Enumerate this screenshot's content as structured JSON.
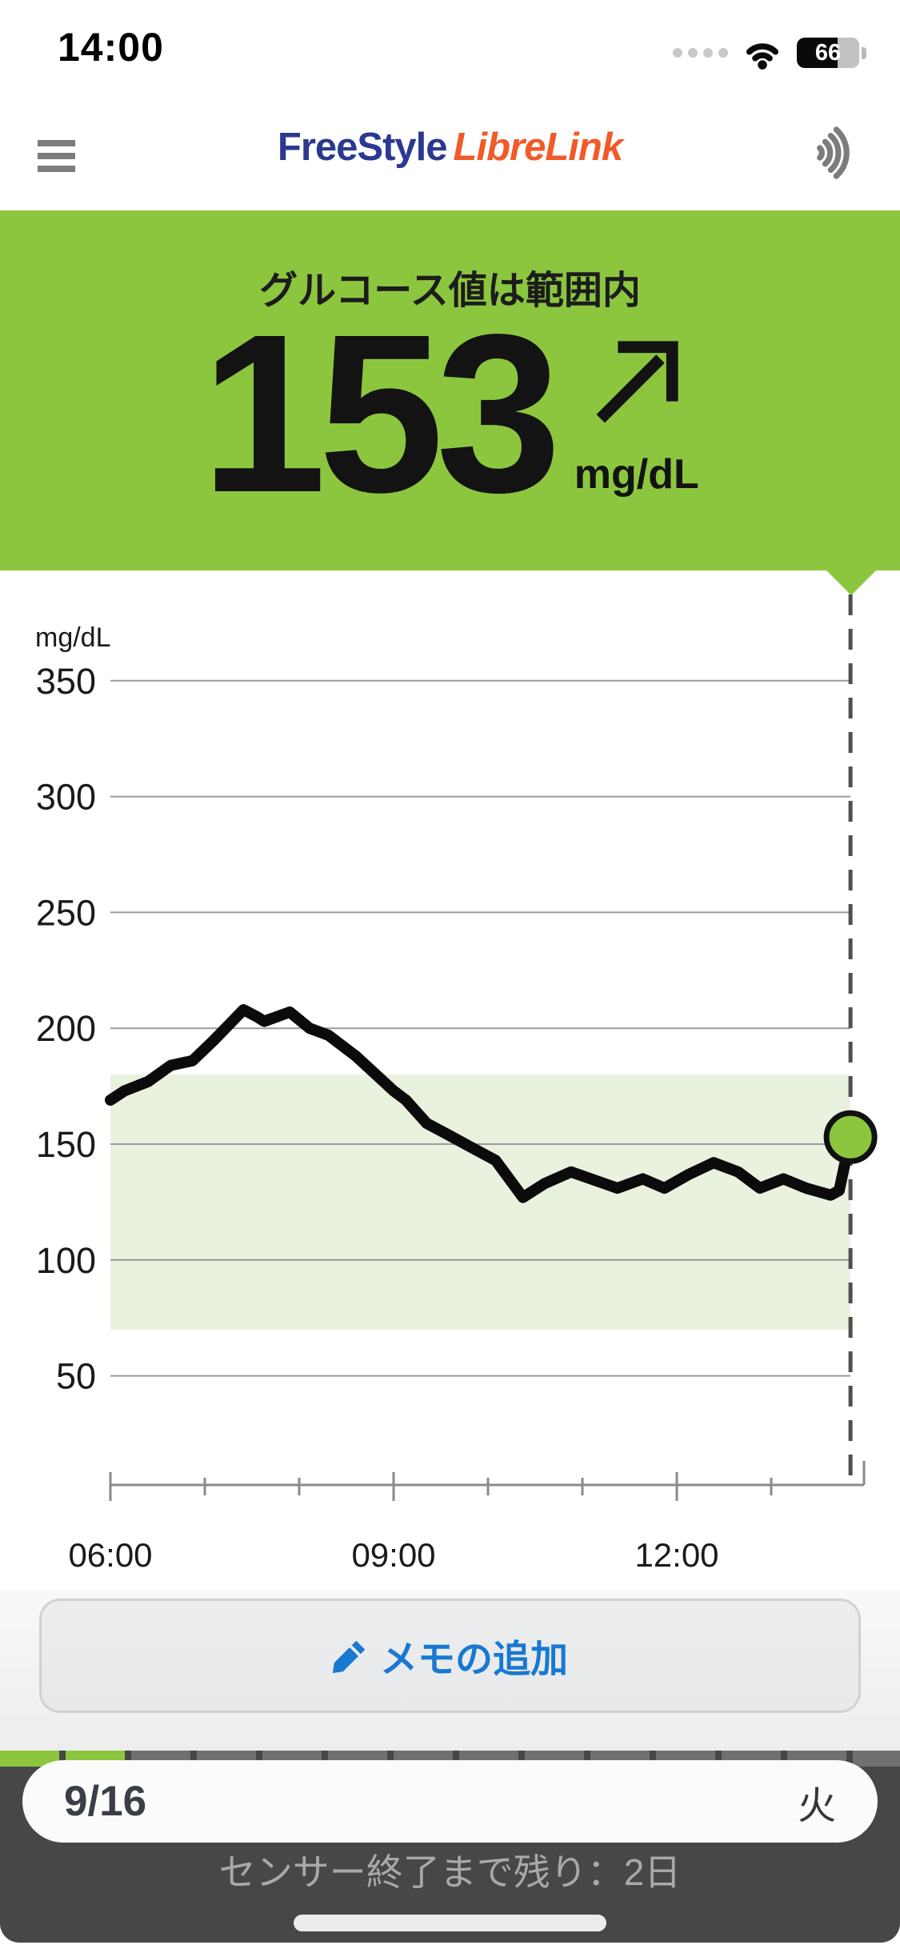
{
  "status_bar": {
    "time": "14:00",
    "battery_percent": 66,
    "battery_label": "66"
  },
  "header": {
    "logo_part1": "FreeStyle",
    "logo_part2": "LibreLink",
    "menu_icon": "hamburger-icon",
    "scan_icon": "nfc-scan-icon"
  },
  "banner": {
    "status_text": "グルコース値は範囲内",
    "value": "153",
    "unit": "mg/dL",
    "trend": "rising",
    "bg_color": "#8CC63F"
  },
  "chart_data": {
    "type": "line",
    "ylabel_unit": "mg/dL",
    "y_ticks": [
      350,
      300,
      250,
      200,
      150,
      100,
      50
    ],
    "ylim": [
      0,
      375
    ],
    "x_ticks": [
      {
        "hour": 6,
        "label": "06:00"
      },
      {
        "hour": 9,
        "label": "09:00"
      },
      {
        "hour": 12,
        "label": "12:00"
      }
    ],
    "x_minor_tick_hours": [
      6,
      7,
      8,
      9,
      10,
      11,
      12,
      13
    ],
    "x_range_hours": [
      6,
      14
    ],
    "target_range": [
      70,
      180
    ],
    "grid": true,
    "series": [
      [
        6.0,
        169
      ],
      [
        6.15,
        173
      ],
      [
        6.4,
        177
      ],
      [
        6.64,
        184
      ],
      [
        6.87,
        186
      ],
      [
        7.1,
        195
      ],
      [
        7.41,
        208
      ],
      [
        7.55,
        205
      ],
      [
        7.63,
        203
      ],
      [
        7.9,
        207
      ],
      [
        8.11,
        200
      ],
      [
        8.31,
        197
      ],
      [
        8.6,
        188
      ],
      [
        9.0,
        173
      ],
      [
        9.13,
        169
      ],
      [
        9.35,
        159
      ],
      [
        9.58,
        154
      ],
      [
        9.85,
        148
      ],
      [
        10.08,
        143
      ],
      [
        10.37,
        127
      ],
      [
        10.6,
        133
      ],
      [
        10.88,
        138
      ],
      [
        11.09,
        135
      ],
      [
        11.37,
        131
      ],
      [
        11.64,
        135
      ],
      [
        11.87,
        131
      ],
      [
        12.13,
        137
      ],
      [
        12.39,
        142
      ],
      [
        12.65,
        138
      ],
      [
        12.88,
        131
      ],
      [
        13.13,
        135
      ],
      [
        13.37,
        131
      ],
      [
        13.63,
        128
      ],
      [
        13.72,
        130
      ],
      [
        13.84,
        153
      ]
    ],
    "current_reading": {
      "time_hours": 13.84,
      "value": 153
    },
    "colors": {
      "line": "#0b0b0b",
      "band": "#e9f2de",
      "grid": "#9a9a9a",
      "axis": "#8a8a8a",
      "dashed": "#4f4f4f",
      "dot": "#8CC63F",
      "label": "#1a1a1a"
    }
  },
  "note_button": {
    "label": "メモの追加",
    "icon": "pencil-icon",
    "text_color": "#1878D2"
  },
  "bottom": {
    "date": "9/16",
    "weekday": "火",
    "sensor_text": "センサー終了まで残り：2日",
    "progress_color": "#8CC63F"
  }
}
